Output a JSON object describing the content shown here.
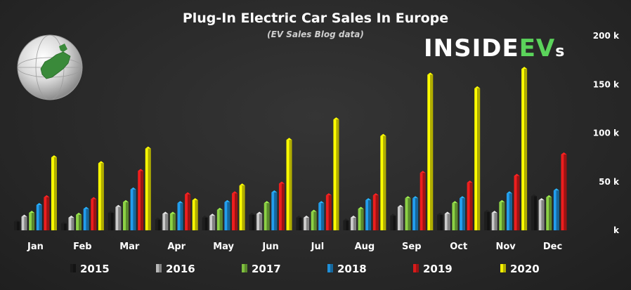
{
  "chart_data": {
    "type": "bar",
    "title": "Plug-In Electric Car Sales In Europe",
    "subtitle": "(EV Sales Blog data)",
    "categories": [
      "Jan",
      "Feb",
      "Mar",
      "Apr",
      "May",
      "Jun",
      "Jul",
      "Aug",
      "Sep",
      "Oct",
      "Nov",
      "Dec"
    ],
    "ylim": [
      0,
      200000
    ],
    "yticks": [
      0,
      50000,
      100000,
      150000,
      200000
    ],
    "ytick_labels": [
      "k",
      "50 k",
      "100 k",
      "150 k",
      "200 k"
    ],
    "grid": false,
    "legend_position": "bottom",
    "series": [
      {
        "name": "2015",
        "color": "#1a1a1a",
        "values": [
          9000,
          7000,
          18000,
          11000,
          13000,
          16000,
          13000,
          10000,
          15000,
          16000,
          19000,
          35000
        ]
      },
      {
        "name": "2016",
        "color": "#b8b8b8",
        "values": [
          14000,
          13000,
          24000,
          17000,
          15000,
          17000,
          13000,
          13000,
          24000,
          17000,
          18000,
          31000
        ]
      },
      {
        "name": "2017",
        "color": "#7fbf3f",
        "values": [
          18000,
          16000,
          29000,
          17000,
          21000,
          28000,
          19000,
          22000,
          33000,
          28000,
          29000,
          34000
        ]
      },
      {
        "name": "2018",
        "color": "#1f8fd8",
        "values": [
          26000,
          22000,
          42000,
          28000,
          29000,
          39000,
          28000,
          31000,
          33000,
          33000,
          38000,
          41000
        ]
      },
      {
        "name": "2019",
        "color": "#d81b1b",
        "values": [
          34000,
          32000,
          61000,
          37000,
          38000,
          48000,
          36000,
          36000,
          59000,
          49000,
          56000,
          78000
        ]
      },
      {
        "name": "2020",
        "color": "#f4f000",
        "values": [
          75000,
          69000,
          84000,
          31000,
          46000,
          93000,
          114000,
          97000,
          160000,
          146000,
          166000,
          null
        ]
      }
    ]
  },
  "brand": {
    "name_main": "INSIDE",
    "name_ev": "EV",
    "name_suffix": "s"
  }
}
